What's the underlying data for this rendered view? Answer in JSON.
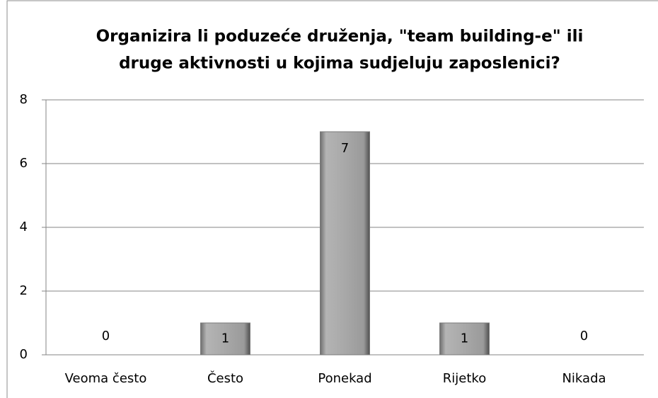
{
  "chart_data": {
    "type": "bar",
    "title": [
      "Organizira li poduzeće druženja, \"team building-e\" ili",
      "druge aktivnosti u kojima sudjeluju zaposlenici?"
    ],
    "categories": [
      "Veoma često",
      "Često",
      "Ponekad",
      "Rijetko",
      "Nikada"
    ],
    "values": [
      0,
      1,
      7,
      1,
      0
    ],
    "color": "#a6a6a6",
    "ylim": [
      0,
      8
    ],
    "yticks": [
      0,
      2,
      4,
      6,
      8
    ],
    "grid": true
  }
}
